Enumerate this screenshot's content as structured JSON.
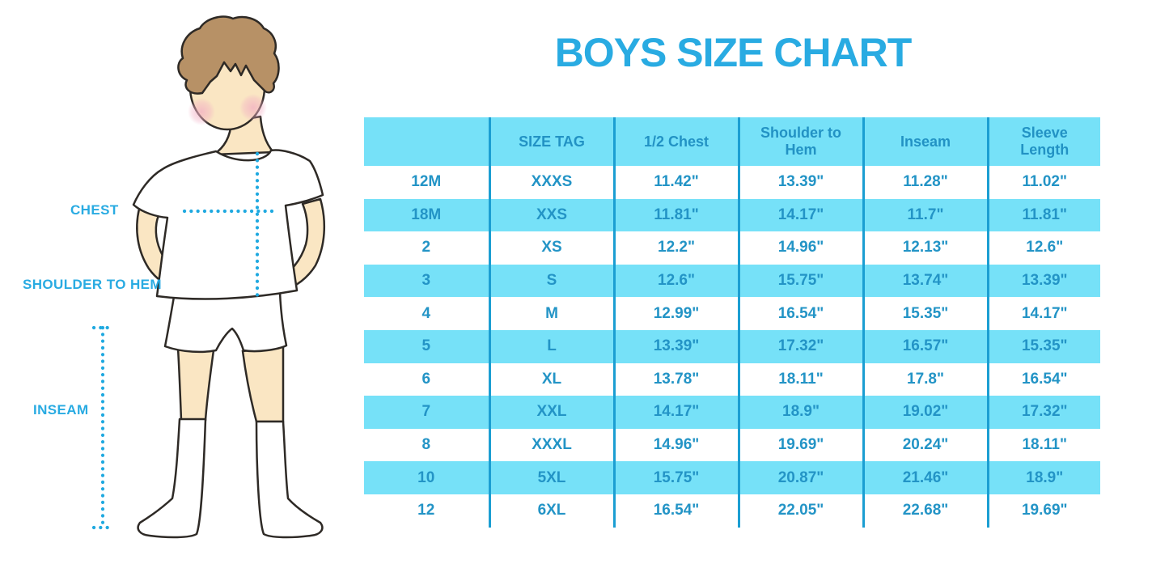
{
  "colors": {
    "accent_blue": "#29ABE2",
    "table_row_fill": "#76E1F8",
    "table_divider": "#1B9ED2",
    "table_text": "#2394C6",
    "dotted_line": "#1FA9E0",
    "skin": "#FAE6C3",
    "hair": "#B79166",
    "blush": "#F2AEC3"
  },
  "figure": {
    "labels": {
      "chest": "CHEST",
      "shoulder_to_hem": "SHOULDER TO HEM",
      "inseam": "INSEAM"
    },
    "illustration": "boy-in-white-tshirt-shorts-and-knee-socks-with-dotted-measurement-lines"
  },
  "chart_data": {
    "type": "table",
    "title": "BOYS SIZE CHART",
    "columns": [
      "",
      "SIZE TAG",
      "1/2 Chest",
      "Shoulder to Hem",
      "Inseam",
      "Sleeve Length"
    ],
    "rows": [
      [
        "12M",
        "XXXS",
        "11.42\"",
        "13.39\"",
        "11.28\"",
        "11.02\""
      ],
      [
        "18M",
        "XXS",
        "11.81\"",
        "14.17\"",
        "11.7\"",
        "11.81\""
      ],
      [
        "2",
        "XS",
        "12.2\"",
        "14.96\"",
        "12.13\"",
        "12.6\""
      ],
      [
        "3",
        "S",
        "12.6\"",
        "15.75\"",
        "13.74\"",
        "13.39\""
      ],
      [
        "4",
        "M",
        "12.99\"",
        "16.54\"",
        "15.35\"",
        "14.17\""
      ],
      [
        "5",
        "L",
        "13.39\"",
        "17.32\"",
        "16.57\"",
        "15.35\""
      ],
      [
        "6",
        "XL",
        "13.78\"",
        "18.11\"",
        "17.8\"",
        "16.54\""
      ],
      [
        "7",
        "XXL",
        "14.17\"",
        "18.9\"",
        "19.02\"",
        "17.32\""
      ],
      [
        "8",
        "XXXL",
        "14.96\"",
        "19.69\"",
        "20.24\"",
        "18.11\""
      ],
      [
        "10",
        "5XL",
        "15.75\"",
        "20.87\"",
        "21.46\"",
        "18.9\""
      ],
      [
        "12",
        "6XL",
        "16.54\"",
        "22.05\"",
        "22.68\"",
        "19.69\""
      ]
    ],
    "row_striping": "white / light-blue alternating, starting white",
    "legend_position": "none",
    "grid": "vertical-dividers-only"
  }
}
